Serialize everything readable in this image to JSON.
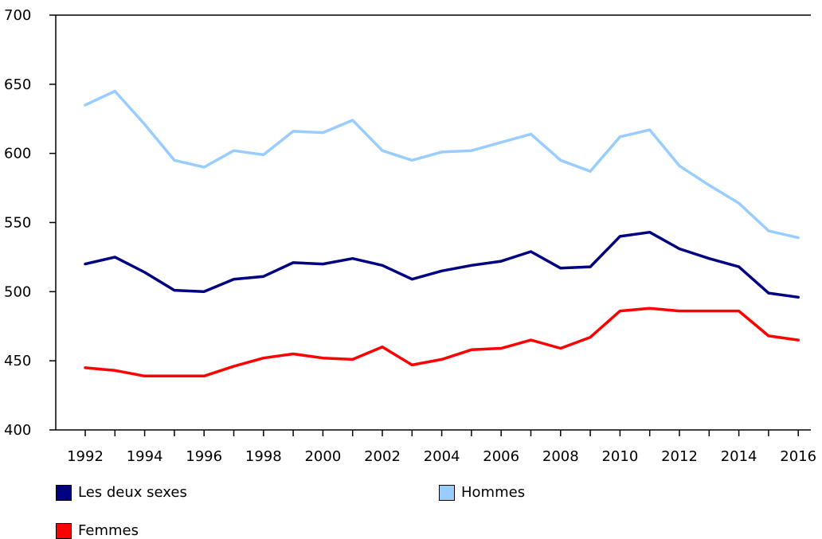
{
  "chart_data": {
    "type": "line",
    "title": "",
    "xlabel": "",
    "ylabel": "",
    "ylim": [
      400,
      700
    ],
    "yticks": [
      400,
      450,
      500,
      550,
      600,
      650,
      700
    ],
    "x": [
      1992,
      1993,
      1994,
      1995,
      1996,
      1997,
      1998,
      1999,
      2000,
      2001,
      2002,
      2003,
      2004,
      2005,
      2006,
      2007,
      2008,
      2009,
      2010,
      2011,
      2012,
      2013,
      2014,
      2015,
      2016
    ],
    "xticks": [
      1992,
      1994,
      1996,
      1998,
      2000,
      2002,
      2004,
      2006,
      2008,
      2010,
      2012,
      2014,
      2016
    ],
    "grid": false,
    "legend_placement": "bottom",
    "series": [
      {
        "name": "Les deux sexes",
        "color": "#000080",
        "values": [
          520,
          525,
          514,
          501,
          500,
          509,
          511,
          521,
          520,
          524,
          519,
          509,
          515,
          519,
          522,
          529,
          517,
          518,
          540,
          543,
          531,
          524,
          518,
          499,
          496
        ]
      },
      {
        "name": "Hommes",
        "color": "#99ccff",
        "values": [
          635,
          645,
          621,
          595,
          590,
          602,
          599,
          616,
          615,
          624,
          602,
          595,
          601,
          602,
          608,
          614,
          595,
          587,
          612,
          617,
          591,
          577,
          564,
          544,
          539
        ]
      },
      {
        "name": "Femmes",
        "color": "#ff0000",
        "values": [
          445,
          443,
          439,
          439,
          439,
          446,
          452,
          455,
          452,
          451,
          460,
          447,
          451,
          458,
          459,
          465,
          459,
          467,
          486,
          488,
          486,
          486,
          486,
          468,
          465
        ]
      }
    ]
  }
}
